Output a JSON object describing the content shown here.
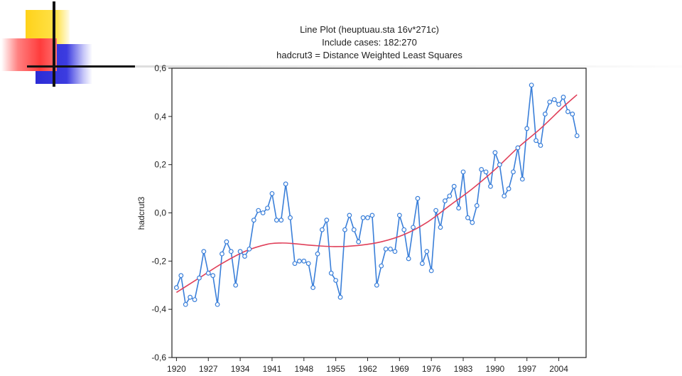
{
  "chart_data": {
    "type": "line",
    "title": "Line Plot (heuptuau.sta 16v*271c)",
    "subtitle": "Include cases: 182:270",
    "subtitle2": "hadcrut3 = Distance Weighted Least Squares",
    "ylabel": "hadcrut3",
    "xlim": [
      1919,
      2010
    ],
    "ylim": [
      -0.6,
      0.6
    ],
    "x_ticks": [
      "1920",
      "1927",
      "1934",
      "1941",
      "1948",
      "1955",
      "1962",
      "1969",
      "1976",
      "1983",
      "1990",
      "1997",
      "2004"
    ],
    "y_ticks": [
      "0,6",
      "0,4",
      "0,2",
      "0,0",
      "-0,2",
      "-0,4",
      "-0,6"
    ],
    "y_tick_values": [
      0.6,
      0.4,
      0.2,
      0.0,
      -0.2,
      -0.4,
      -0.6
    ],
    "series": [
      {
        "color": "#3a7fd9",
        "x_start": 1920,
        "values": [
          -0.31,
          -0.26,
          -0.38,
          -0.35,
          -0.36,
          -0.27,
          -0.16,
          -0.25,
          -0.26,
          -0.38,
          -0.17,
          -0.12,
          -0.16,
          -0.3,
          -0.16,
          -0.18,
          -0.15,
          -0.03,
          0.01,
          0.0,
          0.02,
          0.08,
          -0.03,
          -0.03,
          0.12,
          -0.02,
          -0.21,
          -0.2,
          -0.2,
          -0.21,
          -0.31,
          -0.17,
          -0.07,
          -0.03,
          -0.25,
          -0.28,
          -0.35,
          -0.07,
          -0.01,
          -0.07,
          -0.12,
          -0.02,
          -0.02,
          -0.01,
          -0.3,
          -0.22,
          -0.15,
          -0.15,
          -0.16,
          -0.01,
          -0.07,
          -0.19,
          -0.06,
          0.06,
          -0.21,
          -0.16,
          -0.24,
          0.01,
          -0.06,
          0.05,
          0.07,
          0.11,
          0.02,
          0.17,
          -0.02,
          -0.04,
          0.03,
          0.18,
          0.17,
          0.11,
          0.25,
          0.2,
          0.07,
          0.1,
          0.17,
          0.27,
          0.14,
          0.35,
          0.53,
          0.3,
          0.28,
          0.41,
          0.46,
          0.47,
          0.45,
          0.48,
          0.42,
          0.41,
          0.32
        ]
      },
      {
        "color": "#e0405a",
        "smooth": true,
        "x": [
          1920,
          1925,
          1930,
          1935,
          1940,
          1943,
          1946,
          1950,
          1955,
          1960,
          1965,
          1970,
          1975,
          1980,
          1985,
          1990,
          1995,
          2000,
          2005,
          2008
        ],
        "values": [
          -0.33,
          -0.27,
          -0.21,
          -0.16,
          -0.13,
          -0.125,
          -0.128,
          -0.135,
          -0.14,
          -0.135,
          -0.12,
          -0.09,
          -0.04,
          0.03,
          0.1,
          0.18,
          0.27,
          0.35,
          0.44,
          0.49
        ]
      }
    ]
  }
}
